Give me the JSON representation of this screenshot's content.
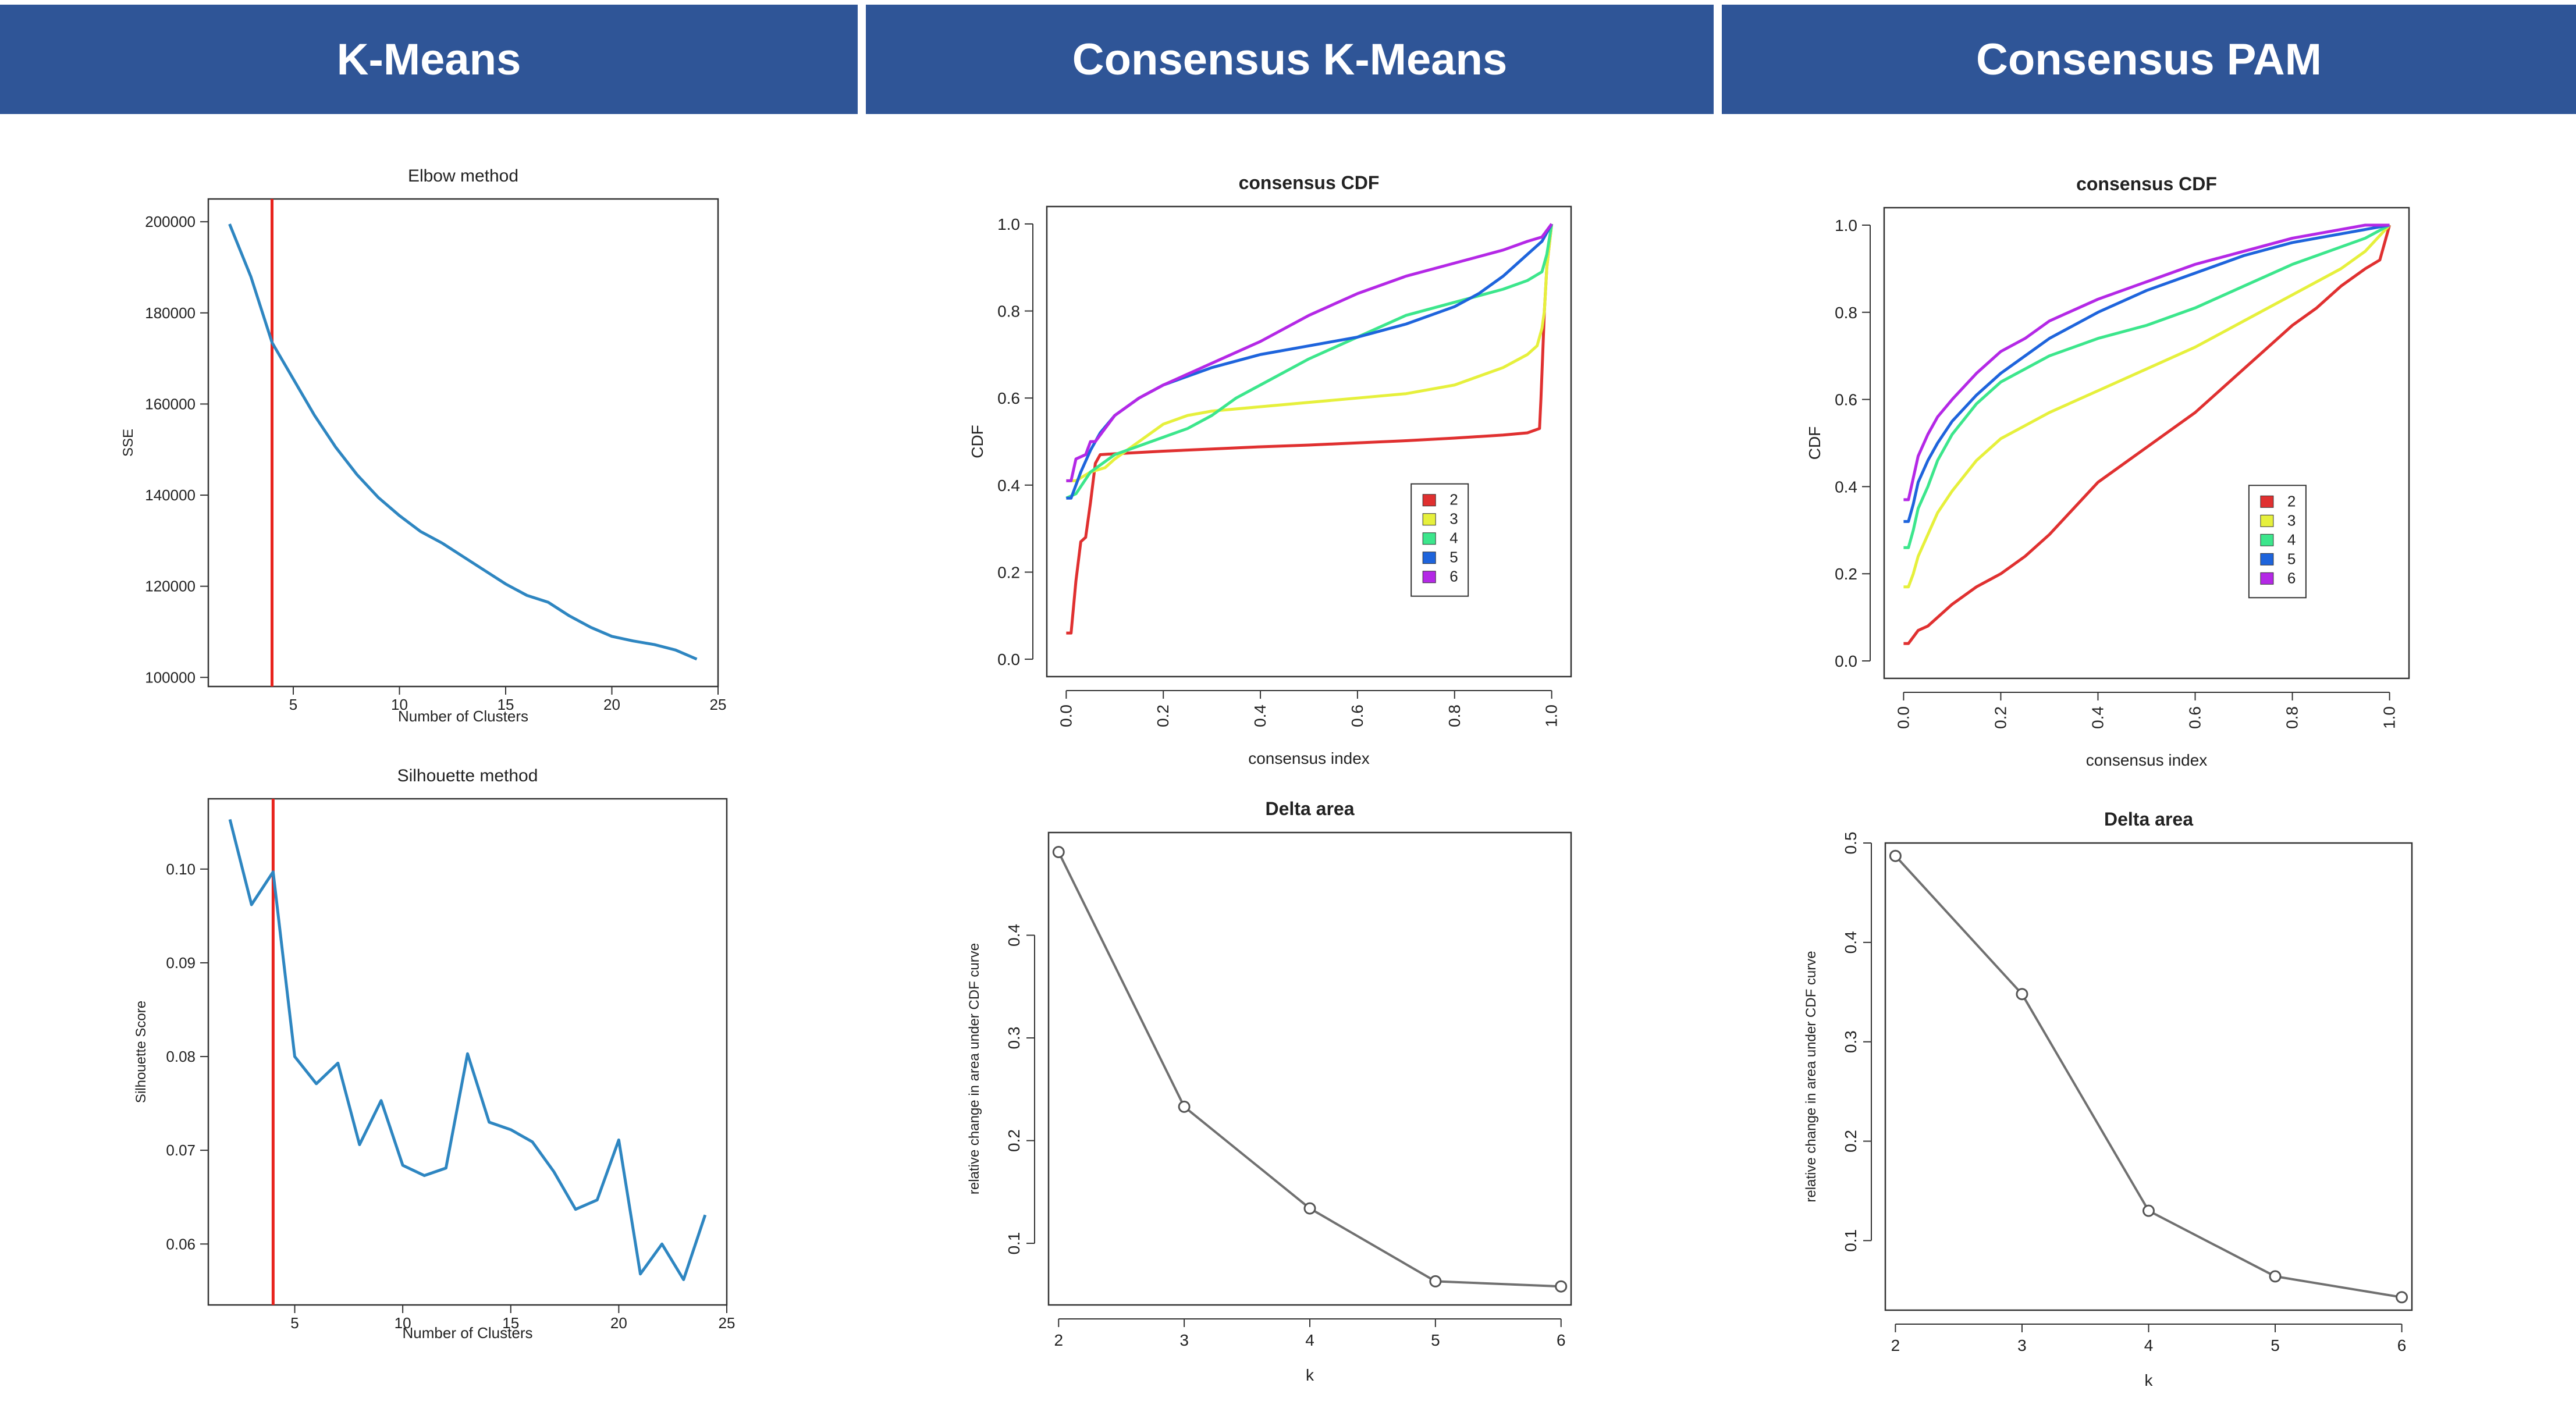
{
  "headers": [
    "K-Means",
    "Consensus K-Means",
    "Consensus PAM"
  ],
  "colors": {
    "header_bg": "#2F5597",
    "kmeans_line": "#2E86C1",
    "elbow_marker": "#E8231D",
    "delta_line": "#707070",
    "k2": "#E03030",
    "k3": "#E6F03C",
    "k4": "#3CE68C",
    "k5": "#1E64DC",
    "k6": "#B428E6"
  },
  "chart_data": [
    {
      "id": "elbow",
      "type": "line",
      "title": "Elbow method",
      "xlabel": "Number of Clusters",
      "ylabel": "SSE",
      "xlim": [
        1,
        25
      ],
      "ylim": [
        98000,
        205000
      ],
      "xticks": [
        5,
        10,
        15,
        20,
        25
      ],
      "yticks": [
        100000,
        120000,
        140000,
        160000,
        180000,
        200000
      ],
      "marker_x": 4,
      "x": [
        2,
        3,
        4,
        5,
        6,
        7,
        8,
        9,
        10,
        11,
        12,
        13,
        14,
        15,
        16,
        17,
        18,
        19,
        20,
        21,
        22,
        23,
        24
      ],
      "y": [
        199500,
        188000,
        173500,
        165500,
        157500,
        150500,
        144500,
        139500,
        135500,
        132000,
        129500,
        126500,
        123500,
        120500,
        118000,
        116500,
        113500,
        111000,
        109000,
        108000,
        107200,
        106000,
        104000
      ]
    },
    {
      "id": "silhouette",
      "type": "line",
      "title": "Silhouette method",
      "xlabel": "Number of Clusters",
      "ylabel": "Silhouette Score",
      "xlim": [
        1,
        25
      ],
      "ylim": [
        0.0535,
        0.1075
      ],
      "xticks": [
        5,
        10,
        15,
        20,
        25
      ],
      "yticks": [
        0.06,
        0.07,
        0.08,
        0.09,
        0.1
      ],
      "ytick_labels": [
        "0.06",
        "0.07",
        "0.08",
        "0.09",
        "0.10"
      ],
      "marker_x": 4,
      "x": [
        2,
        3,
        4,
        5,
        6,
        7,
        8,
        9,
        10,
        11,
        12,
        13,
        14,
        15,
        16,
        17,
        18,
        19,
        20,
        21,
        22,
        23,
        24
      ],
      "y": [
        0.1053,
        0.0962,
        0.0997,
        0.08,
        0.0771,
        0.0793,
        0.0706,
        0.0753,
        0.0684,
        0.0673,
        0.0681,
        0.0803,
        0.073,
        0.0722,
        0.0709,
        0.0677,
        0.0637,
        0.0647,
        0.0711,
        0.0568,
        0.06,
        0.0562,
        0.0631
      ]
    },
    {
      "id": "ckm-cdf",
      "type": "line",
      "title": "consensus CDF",
      "xlabel": "consensus index",
      "ylabel": "CDF",
      "xlim": [
        -0.04,
        1.04
      ],
      "ylim": [
        -0.04,
        1.04
      ],
      "xticks": [
        0.0,
        0.2,
        0.4,
        0.6,
        0.8,
        1.0
      ],
      "yticks": [
        0.0,
        0.2,
        0.4,
        0.6,
        0.8,
        1.0
      ],
      "tick_labels": [
        "0.0",
        "0.2",
        "0.4",
        "0.6",
        "0.8",
        "1.0"
      ],
      "legend": [
        "2",
        "3",
        "4",
        "5",
        "6"
      ],
      "series": [
        {
          "name": "2",
          "x": [
            0,
            0.01,
            0.015,
            0.02,
            0.03,
            0.04,
            0.05,
            0.06,
            0.07,
            0.1,
            0.2,
            0.3,
            0.4,
            0.5,
            0.6,
            0.7,
            0.8,
            0.9,
            0.95,
            0.975,
            0.978,
            0.985,
            0.99,
            1.0
          ],
          "y": [
            0.06,
            0.06,
            0.12,
            0.18,
            0.27,
            0.28,
            0.36,
            0.45,
            0.47,
            0.472,
            0.478,
            0.483,
            0.488,
            0.492,
            0.497,
            0.502,
            0.508,
            0.515,
            0.52,
            0.53,
            0.6,
            0.8,
            0.9,
            1.0
          ]
        },
        {
          "name": "3",
          "x": [
            0,
            0.02,
            0.05,
            0.08,
            0.1,
            0.15,
            0.2,
            0.25,
            0.3,
            0.4,
            0.5,
            0.6,
            0.7,
            0.8,
            0.85,
            0.9,
            0.95,
            0.97,
            0.98,
            0.985,
            0.99,
            1.0
          ],
          "y": [
            0.41,
            0.41,
            0.43,
            0.44,
            0.46,
            0.5,
            0.54,
            0.56,
            0.57,
            0.58,
            0.59,
            0.6,
            0.61,
            0.63,
            0.65,
            0.67,
            0.7,
            0.72,
            0.76,
            0.8,
            0.9,
            1.0
          ]
        },
        {
          "name": "4",
          "x": [
            0,
            0.02,
            0.05,
            0.1,
            0.15,
            0.2,
            0.25,
            0.3,
            0.35,
            0.4,
            0.5,
            0.6,
            0.7,
            0.8,
            0.9,
            0.95,
            0.98,
            0.99,
            1.0
          ],
          "y": [
            0.37,
            0.38,
            0.43,
            0.47,
            0.49,
            0.51,
            0.53,
            0.56,
            0.6,
            0.63,
            0.69,
            0.74,
            0.79,
            0.82,
            0.85,
            0.87,
            0.89,
            0.93,
            1.0
          ]
        },
        {
          "name": "5",
          "x": [
            0,
            0.01,
            0.03,
            0.05,
            0.07,
            0.1,
            0.15,
            0.2,
            0.3,
            0.4,
            0.5,
            0.6,
            0.7,
            0.8,
            0.85,
            0.9,
            0.95,
            0.98,
            1.0
          ],
          "y": [
            0.37,
            0.37,
            0.43,
            0.48,
            0.52,
            0.56,
            0.6,
            0.63,
            0.67,
            0.7,
            0.72,
            0.74,
            0.77,
            0.81,
            0.84,
            0.88,
            0.93,
            0.96,
            1.0
          ]
        },
        {
          "name": "6",
          "x": [
            0,
            0.01,
            0.02,
            0.04,
            0.05,
            0.06,
            0.08,
            0.1,
            0.15,
            0.2,
            0.3,
            0.4,
            0.5,
            0.6,
            0.7,
            0.8,
            0.9,
            0.95,
            0.98,
            1.0
          ],
          "y": [
            0.41,
            0.41,
            0.46,
            0.47,
            0.5,
            0.5,
            0.53,
            0.56,
            0.6,
            0.63,
            0.68,
            0.73,
            0.79,
            0.84,
            0.88,
            0.91,
            0.94,
            0.96,
            0.97,
            1.0
          ]
        }
      ]
    },
    {
      "id": "pam-cdf",
      "type": "line",
      "title": "consensus CDF",
      "xlabel": "consensus index",
      "ylabel": "CDF",
      "xlim": [
        -0.04,
        1.04
      ],
      "ylim": [
        -0.04,
        1.04
      ],
      "xticks": [
        0.0,
        0.2,
        0.4,
        0.6,
        0.8,
        1.0
      ],
      "yticks": [
        0.0,
        0.2,
        0.4,
        0.6,
        0.8,
        1.0
      ],
      "tick_labels": [
        "0.0",
        "0.2",
        "0.4",
        "0.6",
        "0.8",
        "1.0"
      ],
      "legend": [
        "2",
        "3",
        "4",
        "5",
        "6"
      ],
      "series": [
        {
          "name": "2",
          "x": [
            0,
            0.01,
            0.03,
            0.05,
            0.08,
            0.1,
            0.15,
            0.2,
            0.25,
            0.3,
            0.35,
            0.4,
            0.45,
            0.5,
            0.55,
            0.6,
            0.65,
            0.7,
            0.75,
            0.8,
            0.85,
            0.9,
            0.95,
            0.98,
            0.99,
            1.0
          ],
          "y": [
            0.04,
            0.04,
            0.07,
            0.08,
            0.11,
            0.13,
            0.17,
            0.2,
            0.24,
            0.29,
            0.35,
            0.41,
            0.45,
            0.49,
            0.53,
            0.57,
            0.62,
            0.67,
            0.72,
            0.77,
            0.81,
            0.86,
            0.9,
            0.92,
            0.96,
            1.0
          ]
        },
        {
          "name": "3",
          "x": [
            0,
            0.01,
            0.02,
            0.03,
            0.05,
            0.07,
            0.1,
            0.15,
            0.2,
            0.25,
            0.3,
            0.4,
            0.5,
            0.6,
            0.7,
            0.8,
            0.9,
            0.95,
            1.0
          ],
          "y": [
            0.17,
            0.17,
            0.2,
            0.24,
            0.29,
            0.34,
            0.39,
            0.46,
            0.51,
            0.54,
            0.57,
            0.62,
            0.67,
            0.72,
            0.78,
            0.84,
            0.9,
            0.94,
            1.0
          ]
        },
        {
          "name": "4",
          "x": [
            0,
            0.01,
            0.02,
            0.03,
            0.05,
            0.07,
            0.1,
            0.15,
            0.2,
            0.25,
            0.3,
            0.4,
            0.5,
            0.6,
            0.7,
            0.8,
            0.9,
            0.95,
            1.0
          ],
          "y": [
            0.26,
            0.26,
            0.3,
            0.35,
            0.4,
            0.46,
            0.52,
            0.59,
            0.64,
            0.67,
            0.7,
            0.74,
            0.77,
            0.81,
            0.86,
            0.91,
            0.95,
            0.97,
            1.0
          ]
        },
        {
          "name": "5",
          "x": [
            0,
            0.01,
            0.02,
            0.03,
            0.05,
            0.07,
            0.1,
            0.15,
            0.2,
            0.25,
            0.3,
            0.4,
            0.5,
            0.6,
            0.7,
            0.8,
            0.9,
            0.95,
            1.0
          ],
          "y": [
            0.32,
            0.32,
            0.36,
            0.41,
            0.46,
            0.5,
            0.55,
            0.61,
            0.66,
            0.7,
            0.74,
            0.8,
            0.85,
            0.89,
            0.93,
            0.96,
            0.98,
            0.99,
            1.0
          ]
        },
        {
          "name": "6",
          "x": [
            0,
            0.01,
            0.02,
            0.03,
            0.05,
            0.07,
            0.1,
            0.15,
            0.2,
            0.25,
            0.3,
            0.4,
            0.5,
            0.6,
            0.7,
            0.8,
            0.9,
            0.95,
            1.0
          ],
          "y": [
            0.37,
            0.37,
            0.42,
            0.47,
            0.52,
            0.56,
            0.6,
            0.66,
            0.71,
            0.74,
            0.78,
            0.83,
            0.87,
            0.91,
            0.94,
            0.97,
            0.99,
            1.0,
            1.0
          ]
        }
      ]
    },
    {
      "id": "ckm-delta",
      "type": "line",
      "title": "Delta area",
      "xlabel": "k",
      "ylabel": "relative change in area under CDF curve",
      "xlim": [
        1.92,
        6.08
      ],
      "ylim": [
        0.04,
        0.5
      ],
      "xticks": [
        2,
        3,
        4,
        5,
        6
      ],
      "yticks": [
        0.1,
        0.2,
        0.3,
        0.4
      ],
      "ytick_labels": [
        "0.1",
        "0.2",
        "0.3",
        "0.4"
      ],
      "x": [
        2,
        3,
        4,
        5,
        6
      ],
      "y": [
        0.481,
        0.233,
        0.134,
        0.063,
        0.058
      ]
    },
    {
      "id": "pam-delta",
      "type": "line",
      "title": "Delta area",
      "xlabel": "k",
      "ylabel": "relative change in area under CDF curve",
      "xlim": [
        1.92,
        6.08
      ],
      "ylim": [
        0.03,
        0.5
      ],
      "xticks": [
        2,
        3,
        4,
        5,
        6
      ],
      "yticks": [
        0.1,
        0.2,
        0.3,
        0.4,
        0.5
      ],
      "ytick_labels": [
        "0.1",
        "0.2",
        "0.3",
        "0.4",
        "0.5"
      ],
      "x": [
        2,
        3,
        4,
        5,
        6
      ],
      "y": [
        0.487,
        0.348,
        0.13,
        0.064,
        0.043
      ]
    }
  ]
}
